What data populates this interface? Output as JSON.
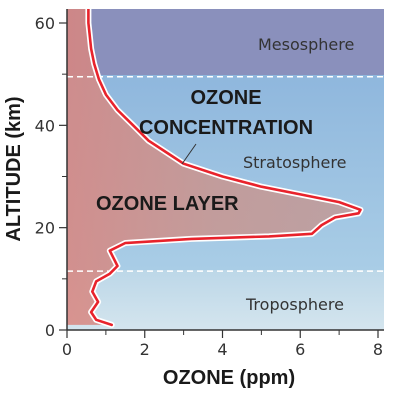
{
  "chart_data": {
    "type": "line",
    "xlabel": "OZONE (ppm)",
    "ylabel": "ALTITUDE (km)",
    "xlim": [
      0,
      8
    ],
    "ylim": [
      0,
      60
    ],
    "x_ticks": [
      "0",
      "2",
      "4",
      "6",
      "8"
    ],
    "y_ticks": [
      "0",
      "20",
      "40",
      "60"
    ],
    "grid": false,
    "annotations": {
      "mesosphere": "Mesosphere",
      "stratosphere": "Stratosphere",
      "troposphere": "Troposphere",
      "concentration_line1": "OZONE",
      "concentration_line2": "CONCENTRATION",
      "ozone_layer": "OZONE LAYER"
    },
    "boundaries_km": [
      11.5,
      49.5
    ],
    "series": [
      {
        "points": [
          [
            1.15,
            1.0
          ],
          [
            0.75,
            2.0
          ],
          [
            0.62,
            3.5
          ],
          [
            0.8,
            5.5
          ],
          [
            0.65,
            7.5
          ],
          [
            0.75,
            9.5
          ],
          [
            1.1,
            11.0
          ],
          [
            1.3,
            12.5
          ],
          [
            1.2,
            14.0
          ],
          [
            1.1,
            15.5
          ],
          [
            1.5,
            17.0
          ],
          [
            3.2,
            17.8
          ],
          [
            5.2,
            18.3
          ],
          [
            6.3,
            18.8
          ],
          [
            6.55,
            20.5
          ],
          [
            6.9,
            22.0
          ],
          [
            7.5,
            22.8
          ],
          [
            7.55,
            23.5
          ],
          [
            7.0,
            25.0
          ],
          [
            6.0,
            26.5
          ],
          [
            5.0,
            28.0
          ],
          [
            4.0,
            30.0
          ],
          [
            3.0,
            32.5
          ],
          [
            2.6,
            34.5
          ],
          [
            2.1,
            37.0
          ],
          [
            1.7,
            40.0
          ],
          [
            1.3,
            43.0
          ],
          [
            1.0,
            46.0
          ],
          [
            0.82,
            49.0
          ],
          [
            0.7,
            52.0
          ],
          [
            0.62,
            55.0
          ],
          [
            0.58,
            58.0
          ],
          [
            0.55,
            60.0
          ],
          [
            0.55,
            62.0
          ],
          [
            0.55,
            63.5
          ]
        ]
      }
    ],
    "colors": {
      "mesosphere": "#8a90bc",
      "stratosphere": "#9ec2e2",
      "troposphere": "#c9dfea",
      "ozone_fill": "#c9928f",
      "line": "#e8232c",
      "boundary": "#ffffff"
    }
  }
}
